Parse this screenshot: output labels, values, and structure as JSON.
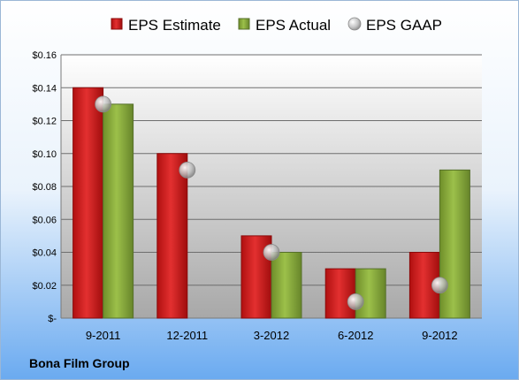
{
  "chart_data": {
    "type": "bar",
    "categories": [
      "9-2011",
      "12-2011",
      "3-2012",
      "6-2012",
      "9-2012"
    ],
    "series": [
      {
        "name": "EPS Estimate",
        "kind": "bar",
        "color": "#d41f1f",
        "values": [
          0.14,
          0.1,
          0.05,
          0.03,
          0.04
        ]
      },
      {
        "name": "EPS Actual",
        "kind": "bar",
        "color": "#8fb040",
        "values": [
          0.13,
          null,
          0.04,
          0.03,
          0.09
        ]
      },
      {
        "name": "EPS GAAP",
        "kind": "marker",
        "color": "#b8b8b8",
        "values": [
          0.13,
          0.09,
          0.04,
          0.01,
          0.02
        ]
      }
    ],
    "ylim": [
      0,
      0.16
    ],
    "yticks": [
      {
        "value": 0,
        "label": "$-"
      },
      {
        "value": 0.02,
        "label": "$0.02"
      },
      {
        "value": 0.04,
        "label": "$0.04"
      },
      {
        "value": 0.06,
        "label": "$0.06"
      },
      {
        "value": 0.08,
        "label": "$0.08"
      },
      {
        "value": 0.1,
        "label": "$0.10"
      },
      {
        "value": 0.12,
        "label": "$0.12"
      },
      {
        "value": 0.14,
        "label": "$0.14"
      },
      {
        "value": 0.16,
        "label": "$0.16"
      }
    ],
    "grid": true,
    "legend": "top",
    "footer": "Bona Film Group"
  }
}
